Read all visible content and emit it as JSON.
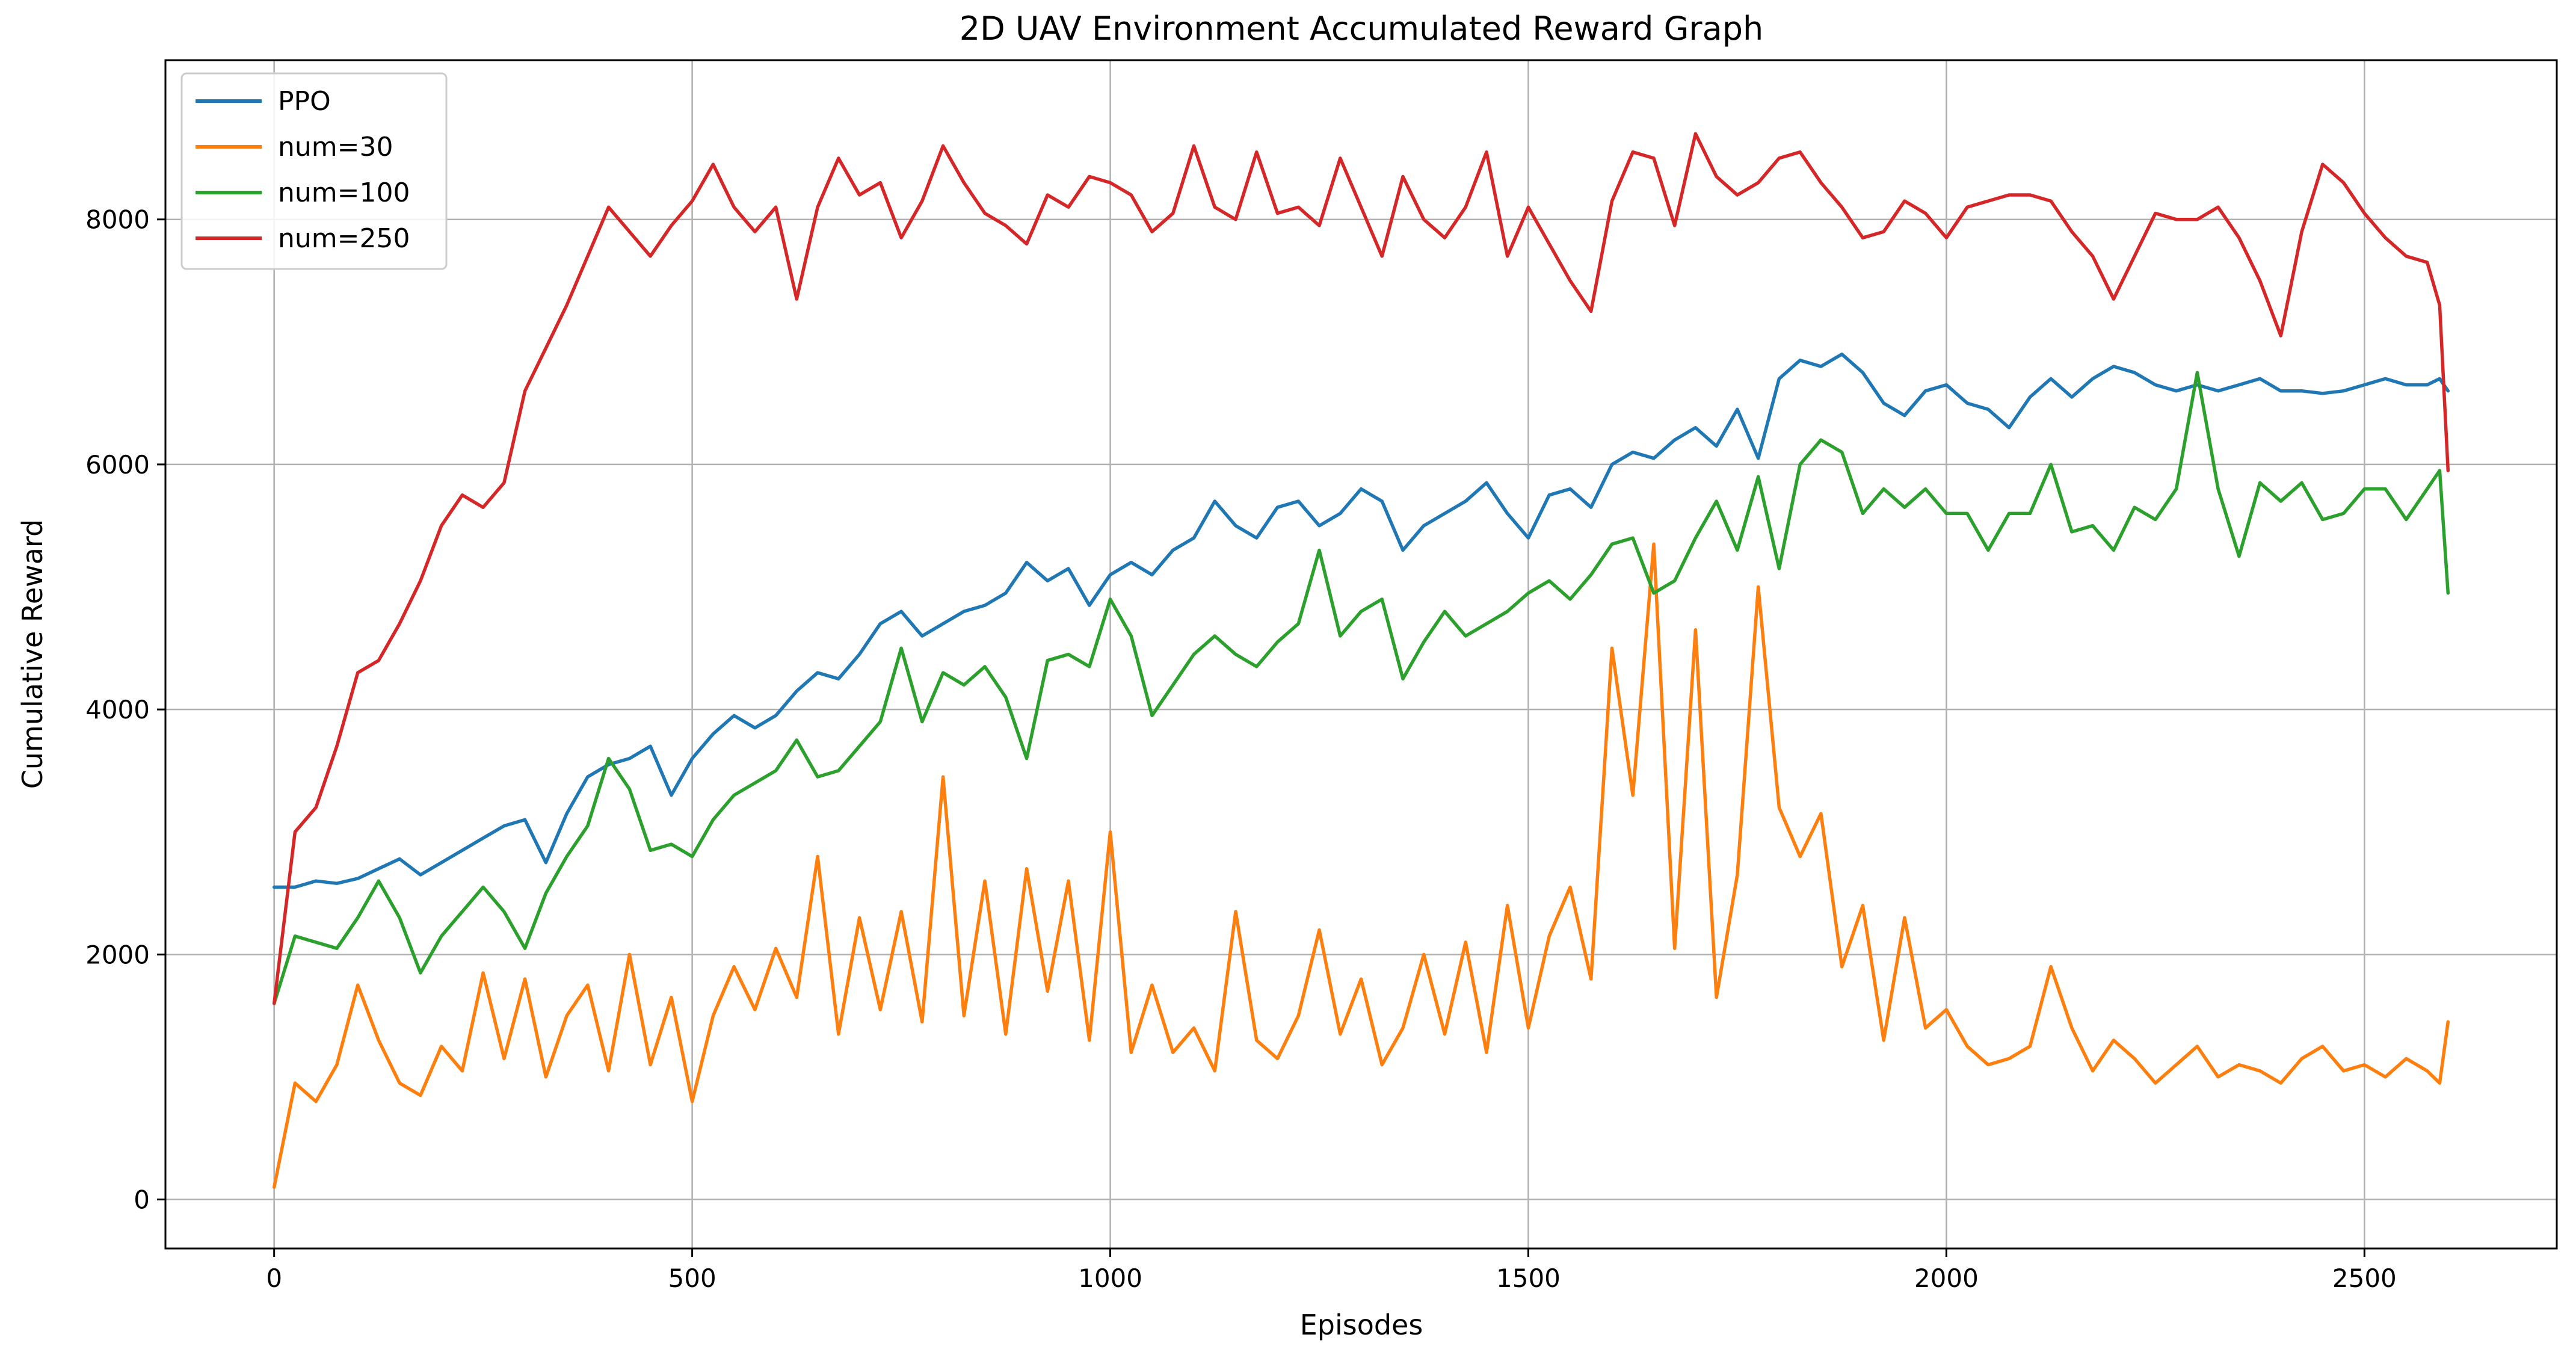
{
  "chart_data": {
    "type": "line",
    "title": "2D UAV Environment Accumulated Reward Graph",
    "xlabel": "Episodes",
    "ylabel": "Cumulative Reward",
    "xlim": [
      -130,
      2730
    ],
    "ylim": [
      -400,
      9300
    ],
    "xticks": [
      0,
      500,
      1000,
      1500,
      2000,
      2500
    ],
    "yticks": [
      0,
      2000,
      4000,
      6000,
      8000
    ],
    "xtick_labels": [
      "0",
      "500",
      "1000",
      "1500",
      "2000",
      "2500"
    ],
    "ytick_labels": [
      "0",
      "2000",
      "4000",
      "6000",
      "8000"
    ],
    "grid": true,
    "legend_position": "top-left",
    "x": [
      0,
      25,
      50,
      75,
      100,
      125,
      150,
      175,
      200,
      225,
      250,
      275,
      300,
      325,
      350,
      375,
      400,
      425,
      450,
      475,
      500,
      525,
      550,
      575,
      600,
      625,
      650,
      675,
      700,
      725,
      750,
      775,
      800,
      825,
      850,
      875,
      900,
      925,
      950,
      975,
      1000,
      1025,
      1050,
      1075,
      1100,
      1125,
      1150,
      1175,
      1200,
      1225,
      1250,
      1275,
      1300,
      1325,
      1350,
      1375,
      1400,
      1425,
      1450,
      1475,
      1500,
      1525,
      1550,
      1575,
      1600,
      1625,
      1650,
      1675,
      1700,
      1725,
      1750,
      1775,
      1800,
      1825,
      1850,
      1875,
      1900,
      1925,
      1950,
      1975,
      2000,
      2025,
      2050,
      2075,
      2100,
      2125,
      2150,
      2175,
      2200,
      2225,
      2250,
      2275,
      2300,
      2325,
      2350,
      2375,
      2400,
      2425,
      2450,
      2475,
      2500,
      2525,
      2550,
      2575,
      2590,
      2600
    ],
    "series": [
      {
        "name": "PPO",
        "color": "#1f77b4",
        "values": [
          2550,
          2550,
          2600,
          2580,
          2620,
          2700,
          2780,
          2650,
          2750,
          2850,
          2950,
          3050,
          3100,
          2750,
          3150,
          3450,
          3550,
          3600,
          3700,
          3300,
          3600,
          3800,
          3950,
          3850,
          3950,
          4150,
          4300,
          4250,
          4450,
          4700,
          4800,
          4600,
          4700,
          4800,
          4850,
          4950,
          5200,
          5050,
          5150,
          4850,
          5100,
          5200,
          5100,
          5300,
          5400,
          5700,
          5500,
          5400,
          5650,
          5700,
          5500,
          5600,
          5800,
          5700,
          5300,
          5500,
          5600,
          5700,
          5850,
          5600,
          5400,
          5750,
          5800,
          5650,
          6000,
          6100,
          6050,
          6200,
          6300,
          6150,
          6450,
          6050,
          6700,
          6850,
          6800,
          6900,
          6750,
          6500,
          6400,
          6600,
          6650,
          6500,
          6450,
          6300,
          6550,
          6700,
          6550,
          6700,
          6800,
          6750,
          6650,
          6600,
          6650,
          6600,
          6650,
          6700,
          6600,
          6600,
          6580,
          6600,
          6650,
          6700,
          6650,
          6650,
          6700,
          6600
        ]
      },
      {
        "name": "num=30",
        "color": "#ff7f0e",
        "values": [
          100,
          950,
          800,
          1100,
          1750,
          1300,
          950,
          850,
          1250,
          1050,
          1850,
          1150,
          1800,
          1000,
          1500,
          1750,
          1050,
          2000,
          1100,
          1650,
          800,
          1500,
          1900,
          1550,
          2050,
          1650,
          2800,
          1350,
          2300,
          1550,
          2350,
          1450,
          3450,
          1500,
          2600,
          1350,
          2700,
          1700,
          2600,
          1300,
          3000,
          1200,
          1750,
          1200,
          1400,
          1050,
          2350,
          1300,
          1150,
          1500,
          2200,
          1350,
          1800,
          1100,
          1400,
          2000,
          1350,
          2100,
          1200,
          2400,
          1400,
          2150,
          2550,
          1800,
          4500,
          3300,
          5350,
          2050,
          4650,
          1650,
          2650,
          5000,
          3200,
          2800,
          3150,
          1900,
          2400,
          1300,
          2300,
          1400,
          1550,
          1250,
          1100,
          1150,
          1250,
          1900,
          1400,
          1050,
          1300,
          1150,
          950,
          1100,
          1250,
          1000,
          1100,
          1050,
          950,
          1150,
          1250,
          1050,
          1100,
          1000,
          1150,
          1050,
          950,
          1450
        ]
      },
      {
        "name": "num=100",
        "color": "#2ca02c",
        "values": [
          1600,
          2150,
          2100,
          2050,
          2300,
          2600,
          2300,
          1850,
          2150,
          2350,
          2550,
          2350,
          2050,
          2500,
          2800,
          3050,
          3600,
          3350,
          2850,
          2900,
          2800,
          3100,
          3300,
          3400,
          3500,
          3750,
          3450,
          3500,
          3700,
          3900,
          4500,
          3900,
          4300,
          4200,
          4350,
          4100,
          3600,
          4400,
          4450,
          4350,
          4900,
          4600,
          3950,
          4200,
          4450,
          4600,
          4450,
          4350,
          4550,
          4700,
          5300,
          4600,
          4800,
          4900,
          4250,
          4550,
          4800,
          4600,
          4700,
          4800,
          4950,
          5050,
          4900,
          5100,
          5350,
          5400,
          4950,
          5050,
          5400,
          5700,
          5300,
          5900,
          5150,
          6000,
          6200,
          6100,
          5600,
          5800,
          5650,
          5800,
          5600,
          5600,
          5300,
          5600,
          5600,
          6000,
          5450,
          5500,
          5300,
          5650,
          5550,
          5800,
          6750,
          5800,
          5250,
          5850,
          5700,
          5850,
          5550,
          5600,
          5800,
          5800,
          5550,
          5800,
          5950,
          4950
        ]
      },
      {
        "name": "num=250",
        "color": "#d62728",
        "values": [
          1600,
          3000,
          3200,
          3700,
          4300,
          4400,
          4700,
          5050,
          5500,
          5750,
          5650,
          5850,
          6600,
          6950,
          7300,
          7700,
          8100,
          7900,
          7700,
          7950,
          8150,
          8450,
          8100,
          7900,
          8100,
          7350,
          8100,
          8500,
          8200,
          8300,
          7850,
          8150,
          8600,
          8300,
          8050,
          7950,
          7800,
          8200,
          8100,
          8350,
          8300,
          8200,
          7900,
          8050,
          8600,
          8100,
          8000,
          8550,
          8050,
          8100,
          7950,
          8500,
          8100,
          7700,
          8350,
          8000,
          7850,
          8100,
          8550,
          7700,
          8100,
          7800,
          7500,
          7250,
          8150,
          8550,
          8500,
          7950,
          8700,
          8350,
          8200,
          8300,
          8500,
          8550,
          8300,
          8100,
          7850,
          7900,
          8150,
          8050,
          7850,
          8100,
          8150,
          8200,
          8200,
          8150,
          7900,
          7700,
          7350,
          7700,
          8050,
          8000,
          8000,
          8100,
          7850,
          7500,
          7050,
          7900,
          8450,
          8300,
          8050,
          7850,
          7700,
          7650,
          7300,
          5950
        ]
      }
    ]
  }
}
